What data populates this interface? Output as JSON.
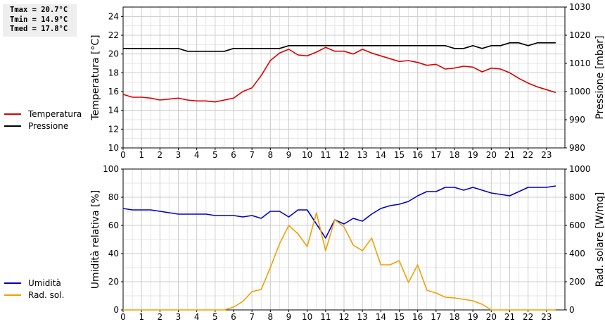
{
  "stats": {
    "tmax": "Tmax = 20.7°C",
    "tmin": "Tmin = 14.9°C",
    "tmed": "Tmed = 17.8°C"
  },
  "chart_data": [
    {
      "type": "line",
      "ylabel": "Temperatura [°C]",
      "ylabel_right": "Pressione [mbar]",
      "xlim": [
        0,
        24
      ],
      "ylim": [
        10,
        25
      ],
      "ylim_right": [
        980,
        1030
      ],
      "x_ticks": [
        "0",
        "1",
        "2",
        "3",
        "4",
        "5",
        "6",
        "7",
        "8",
        "9",
        "10",
        "11",
        "12",
        "13",
        "14",
        "15",
        "16",
        "17",
        "18",
        "19",
        "20",
        "21",
        "22",
        "23"
      ],
      "y_ticks": [
        "10",
        "12",
        "14",
        "16",
        "18",
        "20",
        "22",
        "24"
      ],
      "y_ticks_right": [
        "980",
        "990",
        "1000",
        "1010",
        "1020",
        "1030"
      ],
      "grid": true,
      "series": [
        {
          "name": "Temperatura",
          "axis": "left",
          "color": "#dd0000",
          "x": [
            0,
            0.5,
            1,
            1.5,
            2,
            2.5,
            3,
            3.5,
            4,
            4.5,
            5,
            5.5,
            6,
            6.5,
            7,
            7.5,
            8,
            8.5,
            9,
            9.5,
            10,
            10.5,
            11,
            11.5,
            12,
            12.5,
            13,
            13.5,
            14,
            14.5,
            15,
            15.5,
            16,
            16.5,
            17,
            17.5,
            18,
            18.5,
            19,
            19.5,
            20,
            20.5,
            21,
            21.5,
            22,
            22.5,
            23,
            23.5
          ],
          "y": [
            15.7,
            15.4,
            15.4,
            15.3,
            15.1,
            15.2,
            15.3,
            15.1,
            15.0,
            15.0,
            14.9,
            15.1,
            15.3,
            16.0,
            16.4,
            17.7,
            19.3,
            20.1,
            20.5,
            19.9,
            19.8,
            20.2,
            20.7,
            20.3,
            20.3,
            20.0,
            20.5,
            20.1,
            19.8,
            19.5,
            19.2,
            19.3,
            19.1,
            18.8,
            18.9,
            18.4,
            18.5,
            18.7,
            18.6,
            18.1,
            18.5,
            18.4,
            18.0,
            17.4,
            16.9,
            16.5,
            16.2,
            15.9
          ]
        },
        {
          "name": "Pressione",
          "axis": "right",
          "color": "#000000",
          "x": [
            0,
            1,
            2,
            3,
            3.5,
            4,
            5,
            5.5,
            6,
            7,
            8,
            8.5,
            9,
            10,
            11,
            12,
            13,
            14,
            15,
            16,
            17,
            17.5,
            18,
            18.5,
            19,
            19.5,
            20,
            20.5,
            21,
            21.5,
            22,
            22.5,
            23,
            23.5
          ],
          "y": [
            1015.3,
            1015.3,
            1015.3,
            1015.3,
            1014.3,
            1014.3,
            1014.3,
            1014.3,
            1015.3,
            1015.3,
            1015.3,
            1015.3,
            1016.3,
            1016.3,
            1016.3,
            1016.3,
            1016.3,
            1016.3,
            1016.3,
            1016.3,
            1016.3,
            1016.3,
            1015.3,
            1015.3,
            1016.3,
            1015.3,
            1016.3,
            1016.3,
            1017.3,
            1017.3,
            1016.3,
            1017.3,
            1017.3,
            1017.3
          ]
        }
      ]
    },
    {
      "type": "line",
      "ylabel": "Umidità relativa [%]",
      "ylabel_right": "Rad. solare [W/mq]",
      "xlim": [
        0,
        24
      ],
      "ylim": [
        0,
        100
      ],
      "ylim_right": [
        0,
        1000
      ],
      "x_ticks": [
        "0",
        "1",
        "2",
        "3",
        "4",
        "5",
        "6",
        "7",
        "8",
        "9",
        "10",
        "11",
        "12",
        "13",
        "14",
        "15",
        "16",
        "17",
        "18",
        "19",
        "20",
        "21",
        "22",
        "23"
      ],
      "y_ticks": [
        "0",
        "20",
        "40",
        "60",
        "80",
        "100"
      ],
      "y_ticks_right": [
        "0",
        "200",
        "400",
        "600",
        "800",
        "1000"
      ],
      "grid": true,
      "series": [
        {
          "name": "Umidità",
          "axis": "left",
          "color": "#0000cc",
          "x": [
            0,
            0.5,
            1,
            1.5,
            2,
            2.5,
            3,
            3.5,
            4,
            4.5,
            5,
            5.5,
            6,
            6.5,
            7,
            7.5,
            8,
            8.5,
            9,
            9.5,
            10,
            10.5,
            11,
            11.5,
            12,
            12.5,
            13,
            13.5,
            14,
            14.5,
            15,
            15.5,
            16,
            16.5,
            17,
            17.5,
            18,
            18.5,
            19,
            19.5,
            20,
            20.5,
            21,
            21.5,
            22,
            22.5,
            23,
            23.5
          ],
          "y": [
            72,
            71,
            71,
            71,
            70,
            69,
            68,
            68,
            68,
            68,
            67,
            67,
            67,
            66,
            67,
            65,
            70,
            70,
            66,
            71,
            71,
            61,
            51,
            64,
            61,
            65,
            63,
            68,
            72,
            74,
            75,
            77,
            81,
            84,
            84,
            87,
            87,
            85,
            87,
            85,
            83,
            82,
            81,
            84,
            87,
            87,
            87,
            88
          ]
        },
        {
          "name": "Rad. sol.",
          "axis": "right",
          "color": "#f0a000",
          "x": [
            0,
            0.5,
            1,
            1.5,
            2,
            2.5,
            3,
            3.5,
            4,
            4.5,
            5,
            5.5,
            6,
            6.5,
            7,
            7.5,
            8,
            8.5,
            9,
            9.5,
            10,
            10.5,
            11,
            11.5,
            12,
            12.5,
            13,
            13.5,
            14,
            14.5,
            15,
            15.5,
            16,
            16.5,
            17,
            17.5,
            18,
            18.5,
            19,
            19.5,
            20,
            20.5,
            21,
            21.5,
            22,
            22.5,
            23,
            23.5
          ],
          "y": [
            0,
            0,
            0,
            0,
            0,
            0,
            0,
            0,
            0,
            0,
            0,
            0,
            20,
            60,
            130,
            145,
            300,
            470,
            600,
            540,
            450,
            690,
            420,
            640,
            590,
            460,
            420,
            510,
            320,
            320,
            350,
            195,
            320,
            140,
            120,
            90,
            85,
            75,
            65,
            40,
            0,
            0,
            0,
            0,
            0,
            0,
            0,
            0
          ]
        }
      ]
    }
  ]
}
